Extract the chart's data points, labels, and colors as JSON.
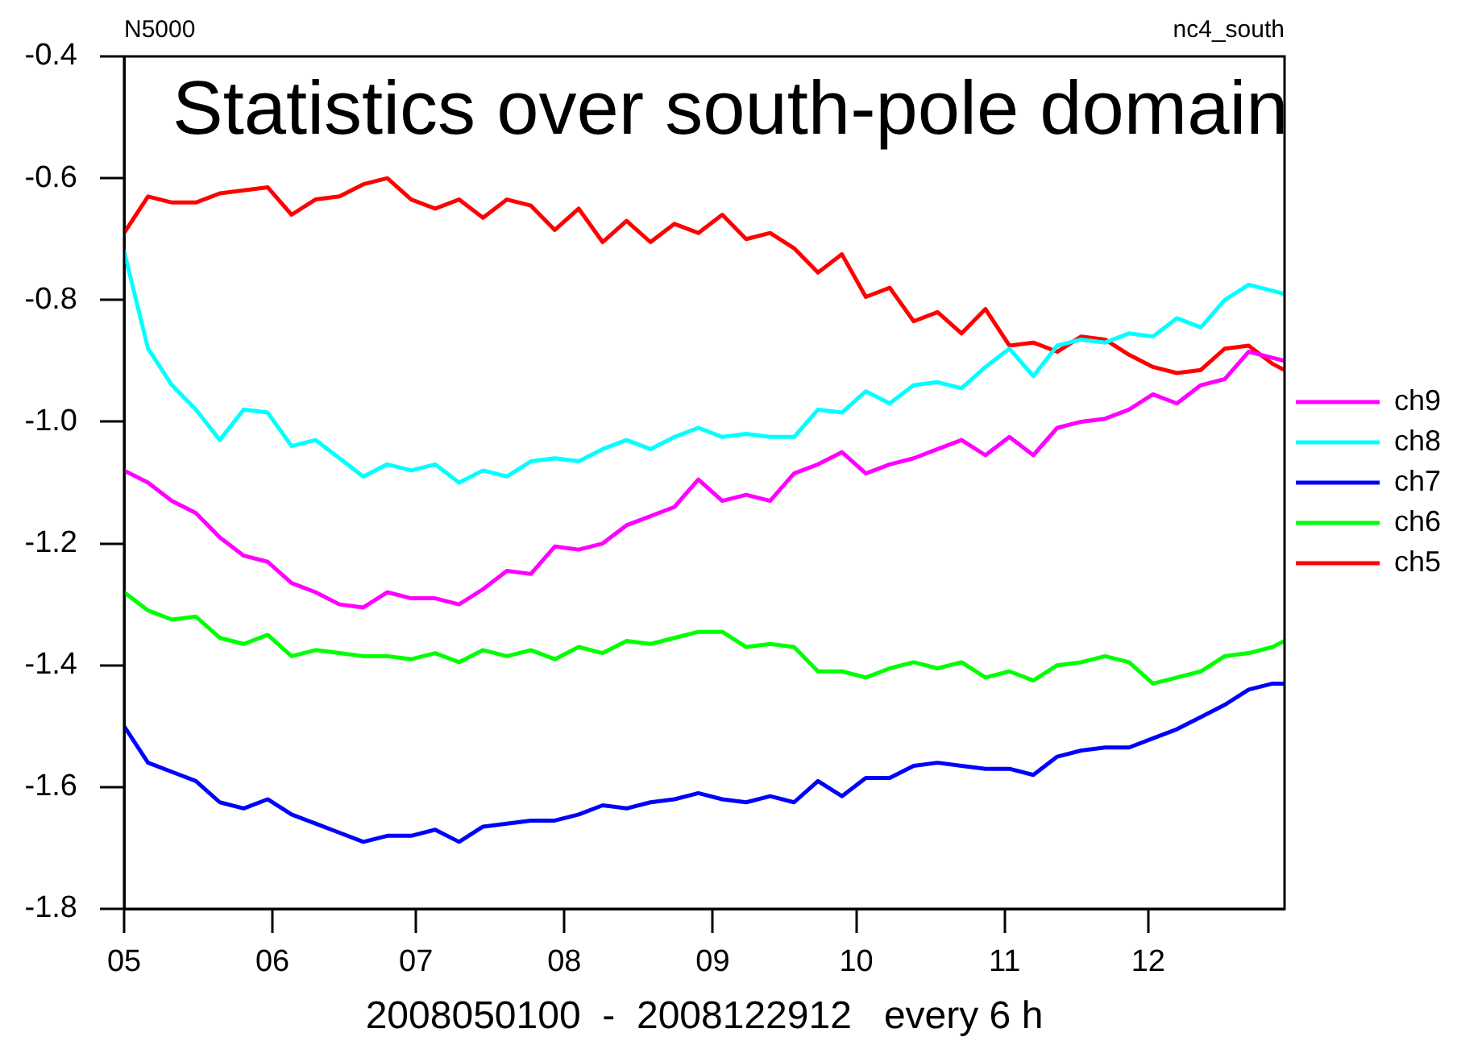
{
  "chart_data": {
    "type": "line",
    "title": "Statistics over south-pole domain",
    "xlabel": "2008050100  -  2008122912   every 6 h",
    "annotations": [
      "N5000",
      "nc4_south"
    ],
    "x": [
      "2008-05-01",
      "2008-05-06",
      "2008-05-11",
      "2008-05-16",
      "2008-05-21",
      "2008-05-26",
      "2008-05-31",
      "2008-06-05",
      "2008-06-10",
      "2008-06-15",
      "2008-06-20",
      "2008-06-25",
      "2008-06-30",
      "2008-07-05",
      "2008-07-10",
      "2008-07-15",
      "2008-07-20",
      "2008-07-25",
      "2008-07-30",
      "2008-08-04",
      "2008-08-09",
      "2008-08-14",
      "2008-08-19",
      "2008-08-24",
      "2008-08-29",
      "2008-09-03",
      "2008-09-08",
      "2008-09-13",
      "2008-09-18",
      "2008-09-23",
      "2008-09-28",
      "2008-10-03",
      "2008-10-08",
      "2008-10-13",
      "2008-10-18",
      "2008-10-23",
      "2008-10-28",
      "2008-11-02",
      "2008-11-07",
      "2008-11-12",
      "2008-11-17",
      "2008-11-22",
      "2008-11-27",
      "2008-12-02",
      "2008-12-07",
      "2008-12-12",
      "2008-12-17",
      "2008-12-22",
      "2008-12-27",
      "2008-12-29T12:00"
    ],
    "series": [
      {
        "name": "ch9",
        "color": "#ff00ff",
        "values": [
          -1.08,
          -1.1,
          -1.13,
          -1.15,
          -1.19,
          -1.22,
          -1.23,
          -1.265,
          -1.28,
          -1.3,
          -1.305,
          -1.28,
          -1.29,
          -1.29,
          -1.3,
          -1.275,
          -1.245,
          -1.25,
          -1.205,
          -1.21,
          -1.2,
          -1.17,
          -1.155,
          -1.14,
          -1.095,
          -1.13,
          -1.12,
          -1.13,
          -1.085,
          -1.07,
          -1.05,
          -1.085,
          -1.07,
          -1.06,
          -1.045,
          -1.03,
          -1.055,
          -1.025,
          -1.055,
          -1.01,
          -1.0,
          -0.995,
          -0.98,
          -0.955,
          -0.97,
          -0.94,
          -0.93,
          -0.885,
          -0.895,
          -0.9
        ]
      },
      {
        "name": "ch8",
        "color": "#00ffff",
        "values": [
          -0.72,
          -0.88,
          -0.94,
          -0.98,
          -1.03,
          -0.98,
          -0.985,
          -1.04,
          -1.03,
          -1.06,
          -1.09,
          -1.07,
          -1.08,
          -1.07,
          -1.1,
          -1.08,
          -1.09,
          -1.065,
          -1.06,
          -1.065,
          -1.045,
          -1.03,
          -1.045,
          -1.025,
          -1.01,
          -1.025,
          -1.02,
          -1.025,
          -1.025,
          -0.98,
          -0.985,
          -0.95,
          -0.97,
          -0.94,
          -0.935,
          -0.945,
          -0.91,
          -0.88,
          -0.925,
          -0.875,
          -0.865,
          -0.87,
          -0.855,
          -0.86,
          -0.83,
          -0.845,
          -0.8,
          -0.775,
          -0.785,
          -0.79
        ]
      },
      {
        "name": "ch7",
        "color": "#0000ff",
        "values": [
          -1.5,
          -1.56,
          -1.575,
          -1.59,
          -1.625,
          -1.635,
          -1.62,
          -1.645,
          -1.66,
          -1.675,
          -1.69,
          -1.68,
          -1.68,
          -1.67,
          -1.69,
          -1.665,
          -1.66,
          -1.655,
          -1.655,
          -1.645,
          -1.63,
          -1.635,
          -1.625,
          -1.62,
          -1.61,
          -1.62,
          -1.625,
          -1.615,
          -1.625,
          -1.59,
          -1.615,
          -1.585,
          -1.585,
          -1.565,
          -1.56,
          -1.565,
          -1.57,
          -1.57,
          -1.58,
          -1.55,
          -1.54,
          -1.535,
          -1.535,
          -1.52,
          -1.505,
          -1.485,
          -1.465,
          -1.44,
          -1.43,
          -1.43
        ]
      },
      {
        "name": "ch6",
        "color": "#00ff00",
        "values": [
          -1.28,
          -1.31,
          -1.325,
          -1.32,
          -1.355,
          -1.365,
          -1.35,
          -1.385,
          -1.375,
          -1.38,
          -1.385,
          -1.385,
          -1.39,
          -1.38,
          -1.395,
          -1.375,
          -1.385,
          -1.375,
          -1.39,
          -1.37,
          -1.38,
          -1.36,
          -1.365,
          -1.355,
          -1.345,
          -1.345,
          -1.37,
          -1.365,
          -1.37,
          -1.41,
          -1.41,
          -1.42,
          -1.405,
          -1.395,
          -1.405,
          -1.395,
          -1.42,
          -1.41,
          -1.425,
          -1.4,
          -1.395,
          -1.385,
          -1.395,
          -1.43,
          -1.42,
          -1.41,
          -1.385,
          -1.38,
          -1.37,
          -1.36
        ]
      },
      {
        "name": "ch5",
        "color": "#ff0000",
        "values": [
          -0.69,
          -0.63,
          -0.64,
          -0.64,
          -0.625,
          -0.62,
          -0.615,
          -0.66,
          -0.635,
          -0.63,
          -0.61,
          -0.6,
          -0.635,
          -0.65,
          -0.635,
          -0.665,
          -0.635,
          -0.645,
          -0.685,
          -0.65,
          -0.705,
          -0.67,
          -0.705,
          -0.675,
          -0.69,
          -0.66,
          -0.7,
          -0.69,
          -0.715,
          -0.755,
          -0.725,
          -0.795,
          -0.78,
          -0.835,
          -0.82,
          -0.855,
          -0.815,
          -0.875,
          -0.87,
          -0.885,
          -0.86,
          -0.865,
          -0.89,
          -0.91,
          -0.92,
          -0.915,
          -0.88,
          -0.875,
          -0.905,
          -0.915
        ]
      }
    ],
    "xlim": [
      "2008-05-01",
      "2008-12-29T12:00"
    ],
    "xticks": [
      {
        "value": "2008-05-01",
        "label": "05"
      },
      {
        "value": "2008-06-01",
        "label": "06"
      },
      {
        "value": "2008-07-01",
        "label": "07"
      },
      {
        "value": "2008-08-01",
        "label": "08"
      },
      {
        "value": "2008-09-01",
        "label": "09"
      },
      {
        "value": "2008-10-01",
        "label": "10"
      },
      {
        "value": "2008-11-01",
        "label": "11"
      },
      {
        "value": "2008-12-01",
        "label": "12"
      }
    ],
    "ylim": [
      -1.8,
      -0.4
    ],
    "yticks": [
      -1.8,
      -1.6,
      -1.4,
      -1.2,
      {
        "value": -1.0,
        "label": "-1.0"
      },
      -0.8,
      -0.6,
      -0.4
    ],
    "grid": false,
    "legend": "right",
    "line_style": "solid"
  }
}
